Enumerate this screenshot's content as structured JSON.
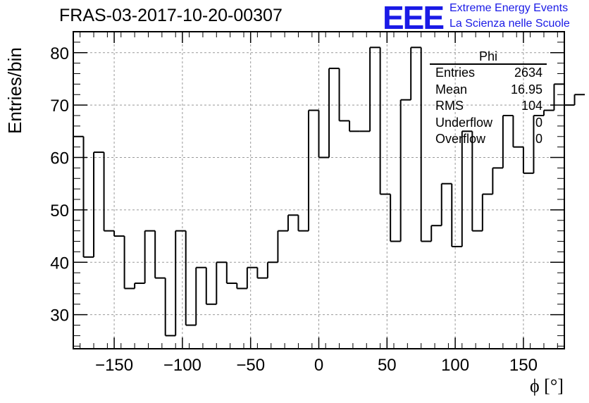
{
  "title": "FRAS-03-2017-10-20-00307",
  "logo": {
    "mark": "EEE",
    "line1": "Extreme Energy Events",
    "line2": "La Scienza nelle Scuole",
    "color": "#1a1ae6"
  },
  "stats_box": {
    "title": "Phi",
    "rows": [
      {
        "key": "Entries",
        "value": "2634"
      },
      {
        "key": "Mean",
        "value": "16.95"
      },
      {
        "key": "RMS",
        "value": "104"
      },
      {
        "key": "Underflow",
        "value": "0"
      },
      {
        "key": "Overflow",
        "value": "0"
      }
    ]
  },
  "chart_data": {
    "type": "histogram",
    "title": "FRAS-03-2017-10-20-00307",
    "xlabel": "ϕ [°]",
    "ylabel": "Entries/bin",
    "xlim": [
      -180,
      180
    ],
    "ylim": [
      23.5,
      84
    ],
    "bin_edges_start": -180,
    "bin_width": 7.5,
    "values": [
      64,
      41,
      61,
      46,
      45,
      35,
      36,
      46,
      37,
      26,
      46,
      28,
      39,
      32,
      40,
      36,
      35,
      39,
      37,
      40,
      46,
      49,
      46,
      69,
      60,
      77,
      67,
      65,
      65,
      81,
      53,
      44,
      71,
      81,
      44,
      47,
      55,
      43,
      65,
      46,
      53,
      58,
      68,
      62,
      57,
      68,
      69,
      74,
      70,
      72
    ],
    "x_ticks": [
      -150,
      -100,
      -50,
      0,
      50,
      100,
      150
    ],
    "x_tick_labels": [
      "−150",
      "−100",
      "−50",
      "0",
      "50",
      "100",
      "150"
    ],
    "y_ticks": [
      30,
      40,
      50,
      60,
      70,
      80
    ],
    "y_tick_labels": [
      "30",
      "40",
      "50",
      "60",
      "70",
      "80"
    ],
    "grid": true,
    "line_color": "#000000",
    "grid_color": "#999999"
  }
}
